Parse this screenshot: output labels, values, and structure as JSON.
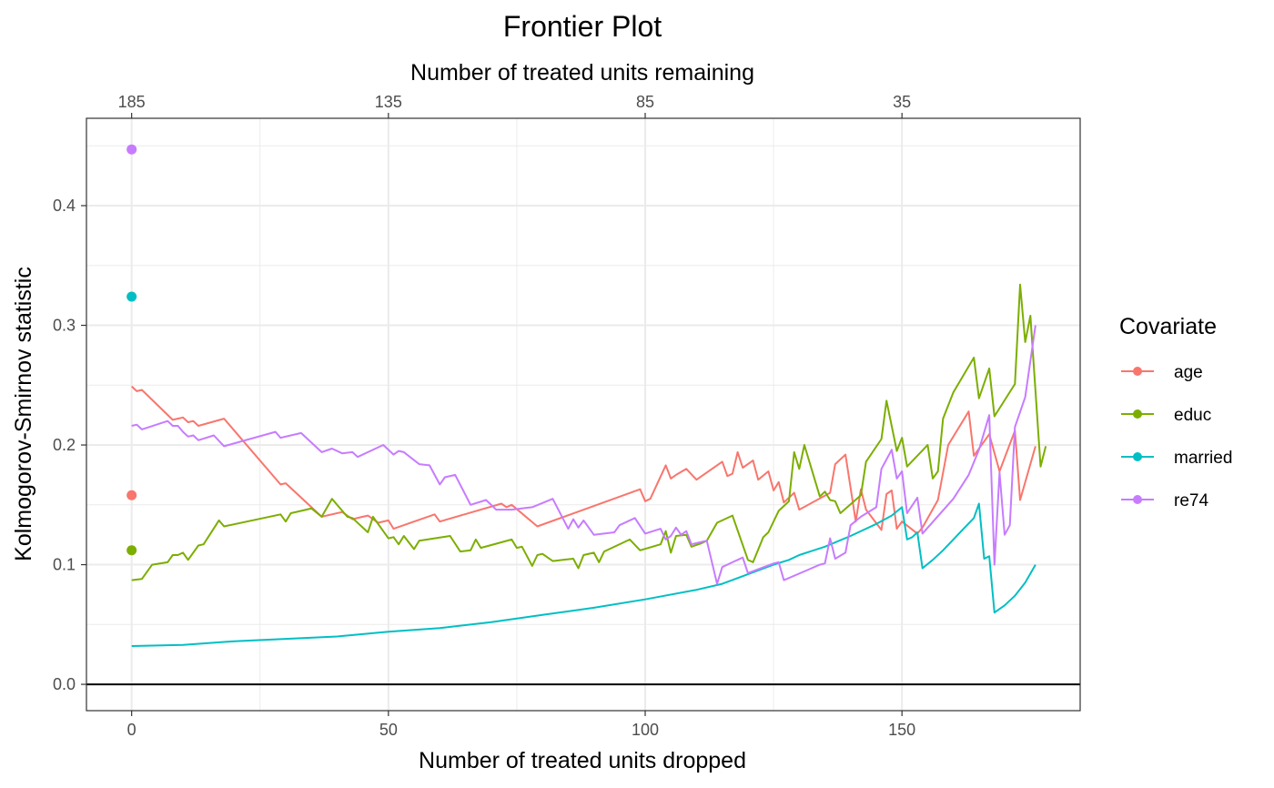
{
  "chart_data": {
    "type": "line",
    "title": "Frontier Plot",
    "xlabel": "Number of treated units dropped",
    "ylabel": "Kolmogorov-Smirnov statistic",
    "x2label": "Number of treated units remaining",
    "xlim": [
      -8.8,
      184.7
    ],
    "ylim": [
      -0.022,
      0.473
    ],
    "xticks": [
      0,
      50,
      100,
      150
    ],
    "xticks_minor": [
      25,
      75,
      125
    ],
    "x2ticks": [
      {
        "pos": 0,
        "label": "185"
      },
      {
        "pos": 50,
        "label": "135"
      },
      {
        "pos": 100,
        "label": "85"
      },
      {
        "pos": 150,
        "label": "35"
      }
    ],
    "yticks": [
      0.0,
      0.1,
      0.2,
      0.3,
      0.4
    ],
    "ytick_labels": [
      "0.0",
      "0.1",
      "0.2",
      "0.3",
      "0.4"
    ],
    "yticks_minor": [
      0.05,
      0.15,
      0.25,
      0.35,
      0.45
    ],
    "hline": 0,
    "grid": true,
    "legend_title": "Covariate",
    "legend_position": "right",
    "series": [
      {
        "name": "age",
        "color": "#F8766D",
        "start_point": [
          0,
          0.158
        ],
        "points": [
          [
            0,
            0.249
          ],
          [
            1,
            0.245
          ],
          [
            2,
            0.246
          ],
          [
            8,
            0.221
          ],
          [
            10,
            0.223
          ],
          [
            11,
            0.219
          ],
          [
            12,
            0.22
          ],
          [
            13,
            0.216
          ],
          [
            18,
            0.222
          ],
          [
            29,
            0.167
          ],
          [
            30,
            0.168
          ],
          [
            37,
            0.14
          ],
          [
            41,
            0.144
          ],
          [
            43,
            0.138
          ],
          [
            45,
            0.14
          ],
          [
            46,
            0.141
          ],
          [
            48,
            0.135
          ],
          [
            50,
            0.137
          ],
          [
            51,
            0.13
          ],
          [
            59,
            0.142
          ],
          [
            60,
            0.136
          ],
          [
            72,
            0.151
          ],
          [
            73,
            0.148
          ],
          [
            74,
            0.15
          ],
          [
            79,
            0.132
          ],
          [
            99,
            0.163
          ],
          [
            100,
            0.153
          ],
          [
            101,
            0.155
          ],
          [
            104,
            0.183
          ],
          [
            105,
            0.172
          ],
          [
            106,
            0.175
          ],
          [
            108,
            0.18
          ],
          [
            110,
            0.171
          ],
          [
            115,
            0.186
          ],
          [
            116,
            0.174
          ],
          [
            117,
            0.176
          ],
          [
            118,
            0.194
          ],
          [
            119,
            0.181
          ],
          [
            121,
            0.187
          ],
          [
            122,
            0.171
          ],
          [
            124,
            0.178
          ],
          [
            125,
            0.162
          ],
          [
            126,
            0.169
          ],
          [
            127,
            0.152
          ],
          [
            129,
            0.16
          ],
          [
            130,
            0.146
          ],
          [
            136,
            0.16
          ],
          [
            137,
            0.184
          ],
          [
            139,
            0.192
          ],
          [
            141,
            0.136
          ],
          [
            142,
            0.163
          ],
          [
            143,
            0.146
          ],
          [
            146,
            0.129
          ],
          [
            147,
            0.159
          ],
          [
            148,
            0.162
          ],
          [
            149,
            0.13
          ],
          [
            150,
            0.136
          ],
          [
            153,
            0.126
          ],
          [
            154,
            0.131
          ],
          [
            157,
            0.154
          ],
          [
            159,
            0.2
          ],
          [
            163,
            0.228
          ],
          [
            164,
            0.191
          ],
          [
            167,
            0.209
          ],
          [
            169,
            0.178
          ],
          [
            172,
            0.212
          ],
          [
            173,
            0.154
          ],
          [
            176,
            0.199
          ]
        ]
      },
      {
        "name": "educ",
        "color": "#7CAE00",
        "start_point": [
          0,
          0.112
        ],
        "points": [
          [
            0,
            0.087
          ],
          [
            2,
            0.088
          ],
          [
            4,
            0.1
          ],
          [
            7,
            0.102
          ],
          [
            8,
            0.108
          ],
          [
            9,
            0.108
          ],
          [
            10,
            0.11
          ],
          [
            11,
            0.104
          ],
          [
            13,
            0.116
          ],
          [
            14,
            0.117
          ],
          [
            17,
            0.137
          ],
          [
            18,
            0.132
          ],
          [
            29,
            0.142
          ],
          [
            30,
            0.136
          ],
          [
            31,
            0.143
          ],
          [
            34,
            0.146
          ],
          [
            35,
            0.147
          ],
          [
            37,
            0.14
          ],
          [
            39,
            0.155
          ],
          [
            42,
            0.14
          ],
          [
            43,
            0.139
          ],
          [
            46,
            0.127
          ],
          [
            47,
            0.14
          ],
          [
            50,
            0.122
          ],
          [
            51,
            0.123
          ],
          [
            52,
            0.117
          ],
          [
            53,
            0.124
          ],
          [
            55,
            0.113
          ],
          [
            56,
            0.12
          ],
          [
            62,
            0.124
          ],
          [
            64,
            0.111
          ],
          [
            66,
            0.112
          ],
          [
            67,
            0.121
          ],
          [
            68,
            0.114
          ],
          [
            74,
            0.121
          ],
          [
            75,
            0.114
          ],
          [
            76,
            0.115
          ],
          [
            78,
            0.099
          ],
          [
            79,
            0.108
          ],
          [
            80,
            0.109
          ],
          [
            82,
            0.103
          ],
          [
            84,
            0.104
          ],
          [
            86,
            0.105
          ],
          [
            87,
            0.097
          ],
          [
            88,
            0.108
          ],
          [
            90,
            0.11
          ],
          [
            91,
            0.102
          ],
          [
            92,
            0.111
          ],
          [
            97,
            0.121
          ],
          [
            99,
            0.112
          ],
          [
            103,
            0.117
          ],
          [
            104,
            0.128
          ],
          [
            105,
            0.11
          ],
          [
            106,
            0.124
          ],
          [
            108,
            0.125
          ],
          [
            109,
            0.115
          ],
          [
            111,
            0.118
          ],
          [
            112,
            0.12
          ],
          [
            114,
            0.135
          ],
          [
            117,
            0.141
          ],
          [
            120,
            0.104
          ],
          [
            121,
            0.102
          ],
          [
            123,
            0.123
          ],
          [
            124,
            0.127
          ],
          [
            126,
            0.145
          ],
          [
            127,
            0.149
          ],
          [
            128,
            0.153
          ],
          [
            129,
            0.194
          ],
          [
            130,
            0.18
          ],
          [
            131,
            0.2
          ],
          [
            134,
            0.157
          ],
          [
            135,
            0.161
          ],
          [
            136,
            0.154
          ],
          [
            137,
            0.153
          ],
          [
            138,
            0.143
          ],
          [
            142,
            0.158
          ],
          [
            143,
            0.186
          ],
          [
            146,
            0.205
          ],
          [
            147,
            0.237
          ],
          [
            149,
            0.195
          ],
          [
            150,
            0.206
          ],
          [
            151,
            0.182
          ],
          [
            155,
            0.2
          ],
          [
            156,
            0.172
          ],
          [
            157,
            0.178
          ],
          [
            158,
            0.222
          ],
          [
            160,
            0.244
          ],
          [
            164,
            0.273
          ],
          [
            165,
            0.239
          ],
          [
            167,
            0.264
          ],
          [
            168,
            0.224
          ],
          [
            172,
            0.251
          ],
          [
            173,
            0.334
          ],
          [
            174,
            0.286
          ],
          [
            175,
            0.308
          ],
          [
            177,
            0.182
          ],
          [
            178,
            0.199
          ]
        ]
      },
      {
        "name": "married",
        "color": "#00BFC4",
        "start_point": [
          0,
          0.324
        ],
        "points": [
          [
            0,
            0.032
          ],
          [
            10,
            0.033
          ],
          [
            20,
            0.036
          ],
          [
            30,
            0.038
          ],
          [
            40,
            0.04
          ],
          [
            50,
            0.044
          ],
          [
            60,
            0.047
          ],
          [
            70,
            0.052
          ],
          [
            80,
            0.058
          ],
          [
            90,
            0.064
          ],
          [
            100,
            0.071
          ],
          [
            110,
            0.079
          ],
          [
            115,
            0.084
          ],
          [
            120,
            0.092
          ],
          [
            125,
            0.1
          ],
          [
            128,
            0.104
          ],
          [
            130,
            0.108
          ],
          [
            135,
            0.115
          ],
          [
            140,
            0.124
          ],
          [
            145,
            0.134
          ],
          [
            148,
            0.141
          ],
          [
            150,
            0.148
          ],
          [
            151,
            0.121
          ],
          [
            152,
            0.123
          ],
          [
            153,
            0.127
          ],
          [
            154,
            0.097
          ],
          [
            156,
            0.104
          ],
          [
            158,
            0.112
          ],
          [
            160,
            0.121
          ],
          [
            162,
            0.13
          ],
          [
            164,
            0.139
          ],
          [
            165,
            0.151
          ],
          [
            166,
            0.105
          ],
          [
            167,
            0.107
          ],
          [
            168,
            0.06
          ],
          [
            170,
            0.066
          ],
          [
            172,
            0.074
          ],
          [
            174,
            0.085
          ],
          [
            176,
            0.1
          ]
        ]
      },
      {
        "name": "re74",
        "color": "#C77CFF",
        "start_point": [
          0,
          0.447
        ],
        "points": [
          [
            0,
            0.216
          ],
          [
            1,
            0.217
          ],
          [
            2,
            0.213
          ],
          [
            7,
            0.22
          ],
          [
            8,
            0.216
          ],
          [
            9,
            0.216
          ],
          [
            10,
            0.211
          ],
          [
            11,
            0.207
          ],
          [
            12,
            0.208
          ],
          [
            13,
            0.204
          ],
          [
            16,
            0.208
          ],
          [
            18,
            0.199
          ],
          [
            28,
            0.211
          ],
          [
            29,
            0.206
          ],
          [
            33,
            0.21
          ],
          [
            37,
            0.194
          ],
          [
            39,
            0.197
          ],
          [
            41,
            0.193
          ],
          [
            43,
            0.194
          ],
          [
            44,
            0.19
          ],
          [
            49,
            0.2
          ],
          [
            51,
            0.192
          ],
          [
            52,
            0.195
          ],
          [
            53,
            0.194
          ],
          [
            56,
            0.184
          ],
          [
            58,
            0.183
          ],
          [
            60,
            0.167
          ],
          [
            61,
            0.173
          ],
          [
            63,
            0.175
          ],
          [
            66,
            0.15
          ],
          [
            69,
            0.154
          ],
          [
            71,
            0.146
          ],
          [
            74,
            0.146
          ],
          [
            78,
            0.148
          ],
          [
            82,
            0.155
          ],
          [
            85,
            0.13
          ],
          [
            86,
            0.138
          ],
          [
            87,
            0.131
          ],
          [
            88,
            0.137
          ],
          [
            90,
            0.125
          ],
          [
            94,
            0.127
          ],
          [
            95,
            0.133
          ],
          [
            98,
            0.139
          ],
          [
            100,
            0.126
          ],
          [
            103,
            0.13
          ],
          [
            104,
            0.121
          ],
          [
            105,
            0.124
          ],
          [
            106,
            0.131
          ],
          [
            107,
            0.125
          ],
          [
            108,
            0.128
          ],
          [
            109,
            0.117
          ],
          [
            112,
            0.12
          ],
          [
            114,
            0.084
          ],
          [
            115,
            0.098
          ],
          [
            117,
            0.102
          ],
          [
            118,
            0.104
          ],
          [
            119,
            0.106
          ],
          [
            120,
            0.093
          ],
          [
            125,
            0.101
          ],
          [
            126,
            0.102
          ],
          [
            127,
            0.087
          ],
          [
            134,
            0.1
          ],
          [
            135,
            0.101
          ],
          [
            136,
            0.122
          ],
          [
            137,
            0.105
          ],
          [
            139,
            0.11
          ],
          [
            140,
            0.133
          ],
          [
            142,
            0.14
          ],
          [
            145,
            0.148
          ],
          [
            146,
            0.18
          ],
          [
            148,
            0.196
          ],
          [
            149,
            0.172
          ],
          [
            150,
            0.178
          ],
          [
            151,
            0.143
          ],
          [
            153,
            0.156
          ],
          [
            154,
            0.126
          ],
          [
            160,
            0.155
          ],
          [
            163,
            0.175
          ],
          [
            165,
            0.196
          ],
          [
            167,
            0.225
          ],
          [
            168,
            0.1
          ],
          [
            169,
            0.177
          ],
          [
            170,
            0.125
          ],
          [
            171,
            0.133
          ],
          [
            172,
            0.215
          ],
          [
            174,
            0.24
          ],
          [
            176,
            0.3
          ]
        ]
      }
    ]
  }
}
